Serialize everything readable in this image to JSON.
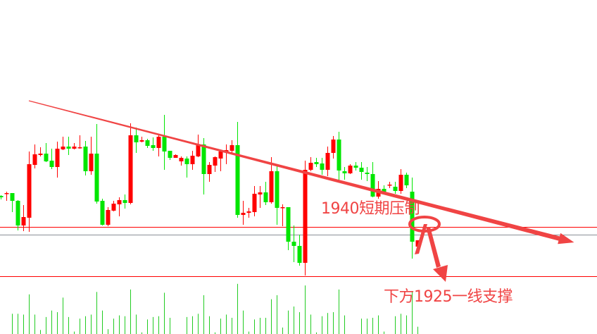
{
  "chart_data": {
    "type": "candlestick",
    "colors": {
      "up": "#ff0000",
      "down": "#00e600",
      "volume": "#22cc22",
      "level_line": "#ff0000",
      "price_line": "#8a8f96",
      "annotation": "#f04444"
    },
    "ohlc": [
      [
        1947.8,
        1948.0,
        1946.8,
        1947.4
      ],
      [
        1948.4,
        1949.0,
        1946.4,
        1948.6
      ],
      [
        1948.6,
        1948.6,
        1943.2,
        1946.4
      ],
      [
        1946.4,
        1946.6,
        1938.0,
        1939.4
      ],
      [
        1939.4,
        1945.2,
        1937.8,
        1941.8
      ],
      [
        1941.6,
        1960.4,
        1937.6,
        1956.8
      ],
      [
        1956.6,
        1962.4,
        1955.6,
        1959.6
      ],
      [
        1959.4,
        1961.6,
        1959.0,
        1959.8
      ],
      [
        1959.8,
        1962.8,
        1957.4,
        1957.6
      ],
      [
        1957.8,
        1961.2,
        1955.4,
        1956.0
      ],
      [
        1956.0,
        1963.2,
        1953.0,
        1961.2
      ],
      [
        1961.0,
        1964.6,
        1960.8,
        1961.8
      ],
      [
        1961.8,
        1964.6,
        1959.4,
        1961.2
      ],
      [
        1961.2,
        1962.8,
        1961.0,
        1961.8
      ],
      [
        1961.6,
        1965.0,
        1961.2,
        1961.6
      ],
      [
        1961.8,
        1963.4,
        1953.6,
        1954.8
      ],
      [
        1954.8,
        1964.6,
        1953.8,
        1959.8
      ],
      [
        1959.8,
        1968.2,
        1945.6,
        1946.2
      ],
      [
        1946.4,
        1947.0,
        1939.4,
        1939.6
      ],
      [
        1939.6,
        1944.6,
        1939.2,
        1943.8
      ],
      [
        1943.6,
        1946.4,
        1943.4,
        1945.6
      ],
      [
        1945.4,
        1947.4,
        1942.0,
        1946.6
      ],
      [
        1946.6,
        1948.2,
        1944.2,
        1945.8
      ],
      [
        1945.8,
        1968.4,
        1945.4,
        1965.0
      ],
      [
        1965.0,
        1967.2,
        1960.0,
        1963.0
      ],
      [
        1963.2,
        1964.6,
        1963.0,
        1963.6
      ],
      [
        1963.6,
        1964.0,
        1961.4,
        1962.0
      ],
      [
        1962.2,
        1964.4,
        1960.6,
        1961.4
      ],
      [
        1961.4,
        1965.2,
        1959.0,
        1964.6
      ],
      [
        1964.6,
        1970.8,
        1955.2,
        1960.4
      ],
      [
        1960.6,
        1960.6,
        1958.0,
        1958.6
      ],
      [
        1958.6,
        1959.6,
        1958.6,
        1959.4
      ],
      [
        1957.6,
        1959.0,
        1956.4,
        1958.6
      ],
      [
        1958.4,
        1959.0,
        1953.0,
        1956.8
      ],
      [
        1956.8,
        1960.6,
        1955.2,
        1959.2
      ],
      [
        1959.0,
        1965.2,
        1958.8,
        1962.4
      ],
      [
        1962.4,
        1964.2,
        1948.2,
        1954.0
      ],
      [
        1954.0,
        1957.4,
        1951.8,
        1956.6
      ],
      [
        1956.4,
        1959.0,
        1954.6,
        1958.8
      ],
      [
        1958.4,
        1960.8,
        1954.8,
        1960.4
      ],
      [
        1960.4,
        1962.4,
        1956.8,
        1960.8
      ],
      [
        1960.6,
        1963.6,
        1960.0,
        1962.2
      ],
      [
        1962.2,
        1968.8,
        1941.6,
        1942.4
      ],
      [
        1942.4,
        1946.4,
        1939.6,
        1943.0
      ],
      [
        1943.0,
        1944.4,
        1941.6,
        1943.4
      ],
      [
        1943.2,
        1950.6,
        1942.0,
        1948.4
      ],
      [
        1948.2,
        1950.6,
        1944.4,
        1948.8
      ],
      [
        1948.8,
        1951.8,
        1945.2,
        1946.0
      ],
      [
        1946.0,
        1958.8,
        1945.6,
        1954.8
      ],
      [
        1954.8,
        1956.2,
        1939.6,
        1944.4
      ],
      [
        1944.4,
        1945.4,
        1939.2,
        1944.6
      ],
      [
        1944.6,
        1944.6,
        1932.4,
        1934.8
      ],
      [
        1934.8,
        1939.4,
        1929.0,
        1933.6
      ],
      [
        1933.6,
        1936.8,
        1928.0,
        1928.8
      ],
      [
        1928.8,
        1957.8,
        1925.2,
        1955.2
      ],
      [
        1955.2,
        1958.8,
        1954.8,
        1957.2
      ],
      [
        1957.4,
        1958.6,
        1956.0,
        1956.8
      ],
      [
        1957.0,
        1958.6,
        1953.8,
        1955.2
      ],
      [
        1955.2,
        1961.8,
        1953.4,
        1960.0
      ],
      [
        1960.0,
        1964.8,
        1958.4,
        1963.8
      ],
      [
        1963.8,
        1966.0,
        1952.0,
        1955.0
      ],
      [
        1954.8,
        1956.0,
        1952.4,
        1954.2
      ],
      [
        1954.2,
        1956.8,
        1954.0,
        1956.4
      ],
      [
        1956.4,
        1957.4,
        1955.0,
        1955.8
      ],
      [
        1955.8,
        1957.4,
        1952.4,
        1954.6
      ],
      [
        1954.4,
        1956.0,
        1952.0,
        1954.0
      ],
      [
        1954.0,
        1957.4,
        1947.4,
        1947.6
      ],
      [
        1947.6,
        1952.0,
        1947.0,
        1949.8
      ],
      [
        1949.8,
        1950.8,
        1948.4,
        1949.0
      ],
      [
        1951.0,
        1951.8,
        1950.0,
        1951.0
      ],
      [
        1950.4,
        1951.8,
        1948.4,
        1949.2
      ],
      [
        1949.2,
        1955.4,
        1948.4,
        1953.8
      ],
      [
        1953.8,
        1954.4,
        1950.0,
        1950.8
      ],
      [
        1949.0,
        1953.0,
        1930.0,
        1934.8
      ],
      [
        1933.4,
        1935.2,
        1933.0,
        1935.2
      ]
    ],
    "volume": [
      null,
      null,
      75,
      75,
      72,
      147,
      72,
      15,
      63,
      87,
      81,
      135,
      63,
      9,
      57,
      66,
      72,
      156,
      87,
      18,
      57,
      69,
      66,
      165,
      72,
      6,
      54,
      63,
      66,
      153,
      60,
      0,
      0,
      63,
      66,
      75,
      144,
      66,
      6,
      57,
      72,
      60,
      186,
      87,
      9,
      54,
      60,
      60,
      129,
      144,
      24,
      87,
      102,
      81,
      180,
      72,
      6,
      66,
      78,
      81,
      165,
      69,
      0,
      0,
      57,
      57,
      60,
      69,
      9,
      0,
      66,
      75,
      69,
      159,
      27
    ],
    "horizontal_lines": [
      1939,
      1936.8,
      1925
    ],
    "trendline": {
      "from": [
        0,
        1974.8
      ],
      "to": [
        74,
        1935.4
      ]
    },
    "annotations": {
      "resistance": "1940短期压制",
      "support": "下方1925一线支撑"
    }
  }
}
